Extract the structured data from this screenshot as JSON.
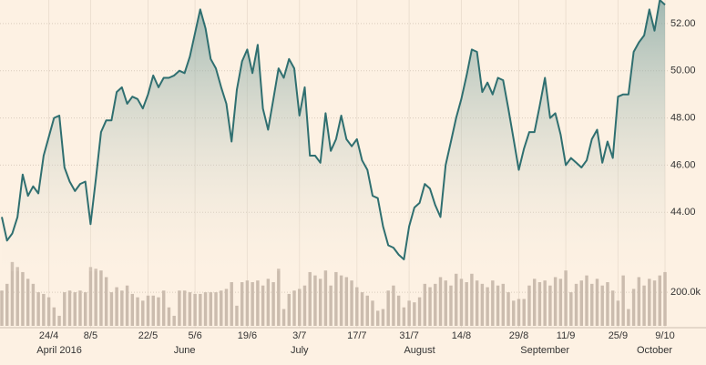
{
  "chart_data": {
    "type": "line",
    "categories": [
      null,
      null,
      null,
      null,
      null,
      null,
      null,
      null,
      null,
      "24/4",
      null,
      null,
      null,
      null,
      null,
      null,
      null,
      "8/5",
      null,
      null,
      null,
      null,
      null,
      null,
      null,
      null,
      null,
      null,
      "22/5",
      null,
      null,
      null,
      null,
      null,
      null,
      null,
      null,
      "5/6",
      null,
      null,
      null,
      null,
      null,
      null,
      null,
      null,
      null,
      "19/6",
      null,
      null,
      null,
      null,
      null,
      null,
      null,
      null,
      null,
      "3/7",
      null,
      null,
      null,
      null,
      null,
      null,
      null,
      null,
      null,
      null,
      "17/7",
      null,
      null,
      null,
      null,
      null,
      null,
      null,
      null,
      null,
      "31/7",
      null,
      null,
      null,
      null,
      null,
      null,
      null,
      null,
      null,
      "14/8",
      null,
      null,
      null,
      null,
      null,
      null,
      null,
      null,
      null,
      null,
      "29/8",
      null,
      null,
      null,
      null,
      null,
      null,
      null,
      null,
      "11/9",
      null,
      null,
      null,
      null,
      null,
      null,
      null,
      null,
      null,
      "25/9",
      null,
      null,
      null,
      null,
      null,
      null,
      null,
      null,
      "9/10"
    ],
    "month_categories": [
      null,
      null,
      null,
      null,
      null,
      null,
      null,
      null,
      null,
      null,
      null,
      "April 2016",
      null,
      null,
      null,
      null,
      null,
      null,
      null,
      null,
      null,
      null,
      null,
      null,
      null,
      null,
      null,
      null,
      null,
      null,
      null,
      null,
      null,
      null,
      null,
      "June",
      null,
      null,
      null,
      null,
      null,
      null,
      null,
      null,
      null,
      null,
      null,
      null,
      null,
      null,
      null,
      null,
      null,
      null,
      null,
      null,
      null,
      "July",
      null,
      null,
      null,
      null,
      null,
      null,
      null,
      null,
      null,
      null,
      null,
      null,
      null,
      null,
      null,
      null,
      null,
      null,
      null,
      null,
      null,
      null,
      "August",
      null,
      null,
      null,
      null,
      null,
      null,
      null,
      null,
      null,
      null,
      null,
      null,
      null,
      null,
      null,
      null,
      null,
      null,
      null,
      null,
      null,
      null,
      null,
      "September",
      null,
      null,
      null,
      null,
      null,
      null,
      null,
      null,
      null,
      null,
      null,
      null,
      null,
      null,
      null,
      null,
      null,
      null,
      null,
      null,
      "October",
      null,
      null
    ],
    "series": [
      {
        "color": "#2f6f70",
        "values": [
          43.8,
          42.8,
          43.1,
          43.8,
          45.6,
          44.7,
          45.1,
          44.8,
          46.4,
          47.2,
          48.0,
          48.1,
          45.9,
          45.3,
          44.9,
          45.2,
          45.3,
          43.5,
          45.4,
          47.4,
          47.9,
          47.9,
          49.1,
          49.3,
          48.6,
          48.9,
          48.8,
          48.4,
          49.0,
          49.8,
          49.3,
          49.7,
          49.7,
          49.8,
          50.0,
          49.9,
          50.6,
          51.6,
          52.6,
          51.8,
          50.5,
          50.1,
          49.3,
          48.6,
          47.0,
          49.2,
          50.4,
          50.9,
          49.9,
          51.1,
          48.4,
          47.5,
          48.8,
          50.1,
          49.7,
          50.5,
          50.1,
          48.1,
          49.3,
          46.4,
          46.4,
          46.1,
          48.2,
          46.6,
          47.1,
          48.1,
          47.1,
          46.8,
          47.1,
          46.2,
          45.8,
          44.7,
          44.6,
          43.4,
          42.6,
          42.5,
          42.2,
          42.0,
          43.4,
          44.2,
          44.4,
          45.2,
          45.0,
          44.3,
          43.8,
          46.0,
          47.0,
          48.0,
          48.8,
          49.8,
          50.9,
          50.8,
          49.1,
          49.5,
          49.0,
          49.7,
          49.6,
          48.4,
          47.1,
          45.8,
          46.7,
          47.4,
          47.4,
          48.5,
          49.7,
          48.0,
          48.2,
          47.3,
          46.0,
          46.3,
          46.1,
          45.9,
          46.2,
          47.1,
          47.5,
          46.1,
          47.0,
          46.3,
          48.9,
          49.0,
          49.0,
          50.8,
          51.2,
          51.5,
          52.6,
          51.7,
          53.0,
          52.8
        ]
      },
      {
        "type": "bar",
        "axis": "y2",
        "color": "#cbbcae",
        "values": [
          210000,
          250000,
          380000,
          350000,
          320000,
          280000,
          250000,
          200000,
          190000,
          170000,
          110000,
          60000,
          200000,
          210000,
          200000,
          210000,
          200000,
          350000,
          340000,
          330000,
          290000,
          200000,
          230000,
          210000,
          240000,
          190000,
          170000,
          150000,
          180000,
          180000,
          170000,
          210000,
          110000,
          60000,
          210000,
          210000,
          200000,
          190000,
          190000,
          200000,
          200000,
          200000,
          210000,
          220000,
          260000,
          120000,
          260000,
          270000,
          260000,
          270000,
          240000,
          280000,
          260000,
          340000,
          100000,
          190000,
          210000,
          220000,
          240000,
          320000,
          300000,
          280000,
          330000,
          240000,
          320000,
          300000,
          290000,
          270000,
          230000,
          200000,
          180000,
          150000,
          90000,
          100000,
          210000,
          240000,
          180000,
          110000,
          150000,
          140000,
          170000,
          250000,
          230000,
          250000,
          290000,
          270000,
          240000,
          310000,
          280000,
          260000,
          310000,
          270000,
          250000,
          230000,
          270000,
          240000,
          250000,
          200000,
          150000,
          160000,
          160000,
          240000,
          280000,
          260000,
          270000,
          240000,
          290000,
          280000,
          330000,
          200000,
          250000,
          270000,
          300000,
          250000,
          280000,
          240000,
          260000,
          210000,
          150000,
          300000,
          100000,
          220000,
          290000,
          240000,
          280000,
          270000,
          300000,
          320000
        ]
      }
    ],
    "ylim": [
      41.5,
      53.0
    ],
    "yticks": [
      {
        "value": 44,
        "label": "44.00"
      },
      {
        "value": 46,
        "label": "46.00"
      },
      {
        "value": 48,
        "label": "48.00"
      },
      {
        "value": 50,
        "label": "50.00"
      },
      {
        "value": 52,
        "label": "52.00"
      }
    ],
    "y2lim": [
      0,
      390000
    ],
    "y2ticks": [
      {
        "value": 200000,
        "label": "200.0k"
      }
    ],
    "grid": true
  }
}
